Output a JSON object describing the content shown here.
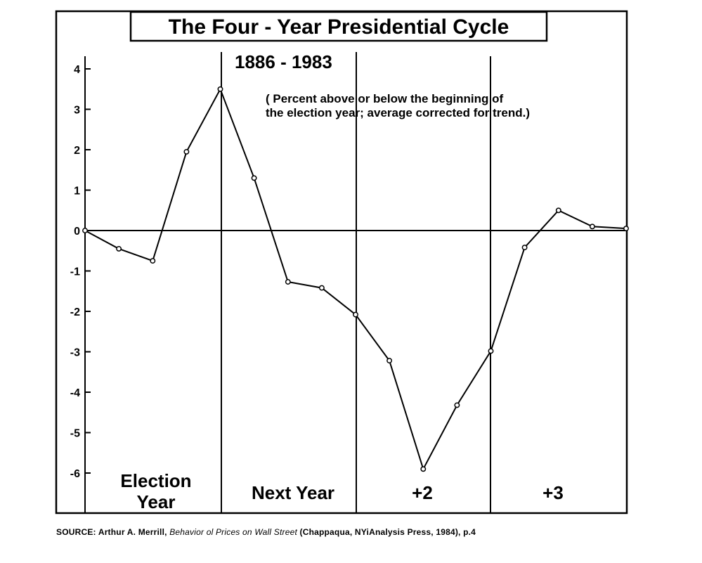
{
  "chart_data": {
    "type": "line",
    "title": "The Four - Year Presidential Cycle",
    "period": "1886 - 1983",
    "note_line1": "( Percent above or below the beginning of",
    "note_line2": "the election year; average corrected for trend.)",
    "xlabel": "",
    "ylabel": "",
    "ylim": [
      -7,
      4
    ],
    "y_ticks": [
      4,
      3,
      2,
      1,
      0,
      -1,
      -2,
      -3,
      -4,
      -5,
      -6
    ],
    "y_tick_labels": [
      "4",
      "3",
      "2",
      "1",
      "0",
      "-1",
      "-2",
      "-3",
      "-4",
      "-5",
      "-6"
    ],
    "grid": false,
    "sections": [
      {
        "label_line1": "Election",
        "label_line2": "Year"
      },
      {
        "label_line1": "Next Year",
        "label_line2": ""
      },
      {
        "label_line1": "+2",
        "label_line2": ""
      },
      {
        "label_line1": "+3",
        "label_line2": ""
      }
    ],
    "x": [
      0,
      0.5,
      1,
      1.5,
      2,
      2.5,
      3,
      3.5,
      4,
      4.5,
      5,
      5.5,
      6,
      6.5,
      7,
      7.5,
      8
    ],
    "series": [
      {
        "values": [
          0,
          -0.45,
          -0.75,
          1.95,
          3.5,
          1.3,
          -1.27,
          -1.42,
          -2.08,
          -3.22,
          -5.9,
          -4.32,
          -2.98,
          -0.42,
          0.5,
          0.1,
          0.05
        ]
      }
    ]
  },
  "source": {
    "prefix": "SOURCE: Arthur A. Merrill, ",
    "book": "Behavior ol Prices on Wall Street",
    "suffix": " (Chappaqua, NYiAnalysis Press, 1984), p.4"
  }
}
